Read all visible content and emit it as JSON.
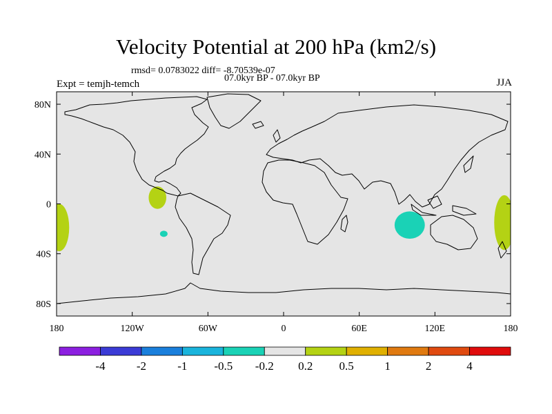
{
  "title": "Velocity Potential at 200 hPa (km2/s)",
  "stats_line": "rmsd= 0.0783022 diff= -8.70539e-07",
  "period_line": "07.0kyr BP - 07.0kyr BP",
  "experiment_label": "Expt = temjh-temch",
  "season_label": "JJA",
  "chart_data": {
    "type": "heatmap",
    "title": "Velocity Potential at 200 hPa (km2/s)",
    "projection": "cylindrical-equidistant",
    "xlim": [
      -180,
      180
    ],
    "ylim": [
      -90,
      90
    ],
    "x_ticks": [
      {
        "value": -180,
        "label": "180"
      },
      {
        "value": -120,
        "label": "120W"
      },
      {
        "value": -60,
        "label": "60W"
      },
      {
        "value": 0,
        "label": "0"
      },
      {
        "value": 60,
        "label": "60E"
      },
      {
        "value": 120,
        "label": "120E"
      },
      {
        "value": 180,
        "label": "180"
      }
    ],
    "y_ticks": [
      {
        "value": 80,
        "label": "80N"
      },
      {
        "value": 40,
        "label": "40N"
      },
      {
        "value": 0,
        "label": "0"
      },
      {
        "value": -40,
        "label": "40S"
      },
      {
        "value": -80,
        "label": "80S"
      }
    ],
    "background_color": "#e5e5e5",
    "colorbar": {
      "levels": [
        "-4",
        "-2",
        "-1",
        "-0.5",
        "-0.2",
        "0.2",
        "0.5",
        "1",
        "2",
        "4"
      ],
      "colors": [
        "#8c1fe0",
        "#3b3bd6",
        "#1a7fdc",
        "#1ab4dc",
        "#1ad2b6",
        "#e5e5e5",
        "#b4d214",
        "#e0b000",
        "#e07a10",
        "#e04a10",
        "#e00c0c"
      ]
    },
    "anomalies": [
      {
        "name": "east-pacific-positive",
        "lon_center": -100,
        "lat_center": 5,
        "lon_radius": 7,
        "lat_radius": 9,
        "level_range": "0.2 to 0.5",
        "color": "#b4d214"
      },
      {
        "name": "southeast-pacific-negative",
        "lon_center": -95,
        "lat_center": -24,
        "lon_radius": 3,
        "lat_radius": 2.5,
        "level_range": "-0.5 to -0.2",
        "color": "#1ad2b6"
      },
      {
        "name": "indian-ocean-negative",
        "lon_center": 100,
        "lat_center": -17,
        "lon_radius": 12,
        "lat_radius": 11,
        "level_range": "-0.5 to -0.2",
        "color": "#1ad2b6"
      },
      {
        "name": "dateline-west-positive",
        "lon_center": -178,
        "lat_center": -19,
        "lon_radius": 8,
        "lat_radius": 19,
        "level_range": "0.2 to 0.5",
        "color": "#b4d214"
      },
      {
        "name": "dateline-east-positive",
        "lon_center": 175,
        "lat_center": -15,
        "lon_radius": 8,
        "lat_radius": 22,
        "level_range": "0.2 to 0.5",
        "color": "#b4d214"
      }
    ]
  }
}
